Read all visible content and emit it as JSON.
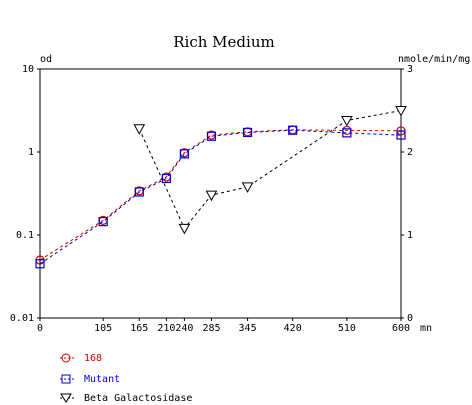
{
  "chart_data": {
    "type": "line",
    "title": "Rich Medium",
    "ylabel_left": "od",
    "ylabel_right": "nmole/min/mg",
    "xlabel": "mn",
    "x_ticks": [
      0,
      105,
      165,
      210,
      240,
      285,
      345,
      420,
      510,
      600
    ],
    "x_tick_labels": [
      "0",
      "105",
      "165",
      "210",
      "240",
      "285",
      "345",
      "420",
      "510",
      "600"
    ],
    "xlim": [
      0,
      600
    ],
    "y_left_scale": "log",
    "y_left_ticks": [
      "10",
      "1",
      "0.1",
      "0.01"
    ],
    "y_left_lim": [
      0.01,
      10
    ],
    "y_right_ticks": [
      "3",
      "2",
      "1",
      "0"
    ],
    "y_right_lim": [
      0,
      3
    ],
    "series": [
      {
        "name": "168",
        "axis": "left",
        "color": "#cc0000",
        "marker": "circle",
        "x": [
          0,
          105,
          165,
          210,
          240,
          285,
          345,
          420,
          510,
          600
        ],
        "y": [
          0.05,
          0.15,
          0.34,
          0.5,
          0.98,
          1.6,
          1.75,
          1.85,
          1.82,
          1.8
        ]
      },
      {
        "name": "Mutant",
        "axis": "left",
        "color": "#0000cc",
        "marker": "square",
        "x": [
          0,
          105,
          165,
          210,
          240,
          285,
          345,
          420,
          510,
          600
        ],
        "y": [
          0.045,
          0.145,
          0.33,
          0.48,
          0.95,
          1.55,
          1.72,
          1.83,
          1.7,
          1.6
        ]
      },
      {
        "name": "Beta Galactosidase",
        "axis": "right",
        "color": "#000000",
        "marker": "triangle-down",
        "x": [
          165,
          240,
          285,
          345,
          510,
          600
        ],
        "y": [
          2.28,
          1.08,
          1.48,
          1.58,
          2.38,
          2.5
        ]
      }
    ]
  }
}
